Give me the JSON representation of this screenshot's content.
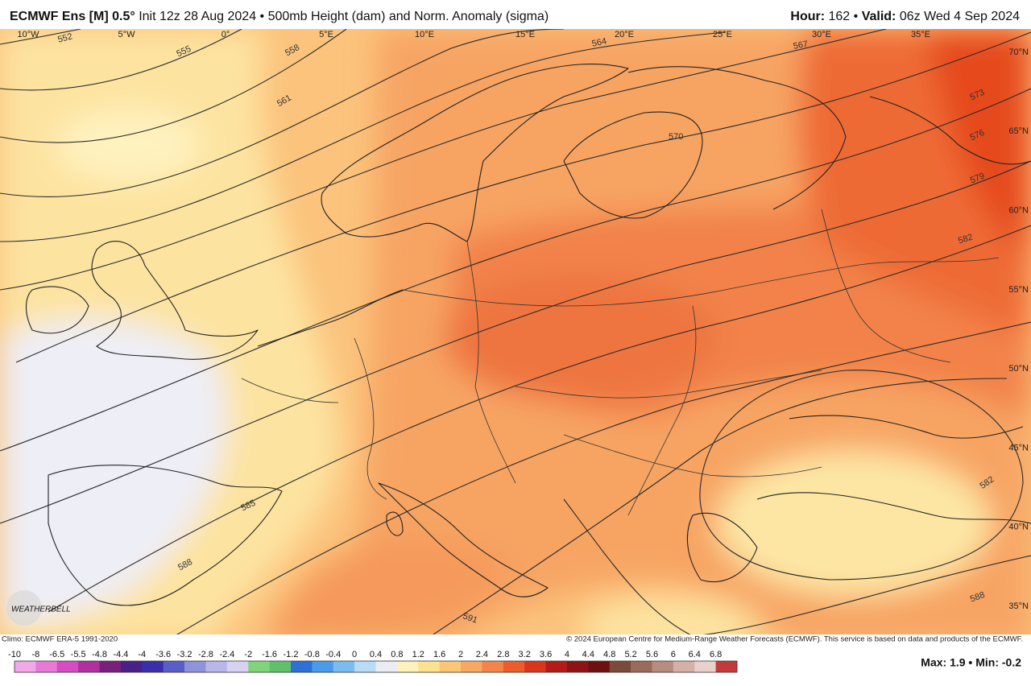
{
  "header": {
    "model": "ECMWF Ens [M] 0.5°",
    "description": "Init 12z 28 Aug 2024 • 500mb Height (dam) and Norm. Anomaly (sigma)",
    "hour_label": "Hour:",
    "hour": "162 •",
    "valid_label": "Valid:",
    "valid": "06z Wed 4 Sep 2024"
  },
  "map": {
    "longitudes": [
      "10°W",
      "5°W",
      "0°",
      "5°E",
      "10°E",
      "15°E",
      "20°E",
      "25°E",
      "30°E",
      "35°E"
    ],
    "latitudes": [
      "70°N",
      "65°N",
      "60°N",
      "55°N",
      "50°N",
      "45°N",
      "40°N",
      "35°N"
    ],
    "contour_labels": [
      "552",
      "555",
      "558",
      "561",
      "564",
      "567",
      "570",
      "573",
      "576",
      "579",
      "582",
      "585",
      "588",
      "591",
      "582",
      "588"
    ],
    "watermark": "WEATHERBELL",
    "climo": "Climo: ECMWF ERA-5 1991-2020",
    "copyright": "© 2024 European Centre for Medium-Range Weather Forecasts (ECMWF). This service is based on data and products of the ECMWF."
  },
  "colorbar": {
    "labels": [
      -10,
      -8,
      -6.5,
      -5.5,
      -4.8,
      -4.4,
      -4,
      -3.6,
      -3.2,
      -2.8,
      -2.4,
      -2,
      -1.6,
      -1.2,
      -0.8,
      -0.4,
      0,
      0.4,
      0.8,
      1.2,
      1.6,
      2,
      2.4,
      2.8,
      3.2,
      3.6,
      4,
      4.4,
      4.8,
      5.2,
      5.6,
      6,
      6.4,
      6.8
    ],
    "colors": [
      "#f3a6e8",
      "#e879d8",
      "#d54cc4",
      "#b0309f",
      "#7a1f7c",
      "#4a1f8a",
      "#3a2fa8",
      "#5a5fc8",
      "#8f93dc",
      "#b9b6ea",
      "#d7d2f2",
      "#7fd67a",
      "#5fc16a",
      "#2f6fd8",
      "#4a9be8",
      "#7bbdf0",
      "#b7dcf5",
      "#ececf5",
      "#fdf3b8",
      "#fde28f",
      "#fbc777",
      "#f8a862",
      "#f3854a",
      "#ec5d2e",
      "#d9361c",
      "#b41b16",
      "#8c1414",
      "#6e1010",
      "#7a4a3a",
      "#9a6a5a",
      "#b88c7e",
      "#d4b0a6",
      "#ead0cb",
      "#c33a3a"
    ]
  },
  "stats": "Max: 1.9 • Min: -0.2"
}
